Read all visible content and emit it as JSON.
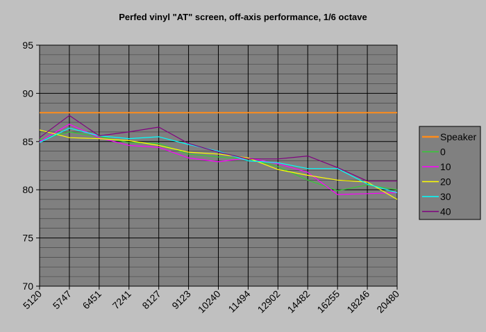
{
  "chart_data": {
    "type": "line",
    "title": "Perfed vinyl \"AT\" screen, off-axis performance, 1/6 octave",
    "xlabel": "",
    "ylabel": "",
    "ylim": [
      70,
      95
    ],
    "yticks": [
      70,
      75,
      80,
      85,
      90,
      95
    ],
    "categories": [
      "5120",
      "5747",
      "6451",
      "7241",
      "8127",
      "9123",
      "10240",
      "11494",
      "12902",
      "14482",
      "16255",
      "18246",
      "20480"
    ],
    "grid": true,
    "legend_position": "right",
    "series": [
      {
        "name": "Speaker",
        "color": "#ff8c1a",
        "values": [
          88,
          88,
          88,
          88,
          88,
          88,
          88,
          88,
          88,
          88,
          88,
          88,
          88
        ]
      },
      {
        "name": "0",
        "color": "#33cc33",
        "values": [
          85.2,
          86.0,
          85.5,
          84.9,
          84.8,
          83.7,
          83.4,
          83.2,
          82.4,
          81.0,
          79.9,
          80.5,
          80.0
        ]
      },
      {
        "name": "10",
        "color": "#ff00ff",
        "values": [
          85.0,
          86.8,
          85.4,
          84.6,
          84.4,
          83.3,
          82.9,
          83.3,
          82.7,
          81.8,
          79.5,
          79.6,
          79.7
        ]
      },
      {
        "name": "20",
        "color": "#ffff00",
        "values": [
          86.2,
          85.4,
          85.3,
          85.1,
          84.6,
          83.9,
          83.7,
          83.3,
          82.1,
          81.5,
          81.0,
          80.8,
          79.0
        ]
      },
      {
        "name": "30",
        "color": "#00ffff",
        "values": [
          84.9,
          86.4,
          85.6,
          85.3,
          85.5,
          84.7,
          84.0,
          83.0,
          82.8,
          82.2,
          82.2,
          80.6,
          79.7
        ]
      },
      {
        "name": "40",
        "color": "#800080",
        "values": [
          85.4,
          87.7,
          85.6,
          86.0,
          86.5,
          84.8,
          83.9,
          83.2,
          83.2,
          83.5,
          82.3,
          80.9,
          80.9
        ]
      }
    ]
  }
}
